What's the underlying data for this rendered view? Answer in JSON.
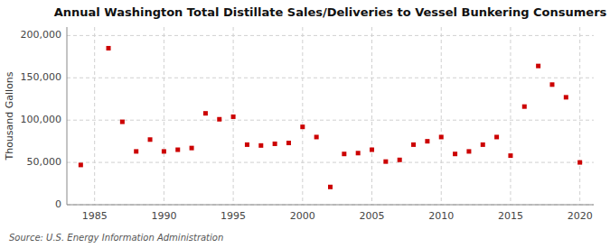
{
  "chart_data": {
    "type": "scatter",
    "title": "Annual Washington Total Distillate Sales/Deliveries to Vessel Bunkering Consumers",
    "ylabel": "Thousand Gallons",
    "source": "Source: U.S. Energy Information Administration",
    "x": [
      1984,
      1986,
      1987,
      1988,
      1989,
      1990,
      1991,
      1992,
      1993,
      1994,
      1995,
      1996,
      1997,
      1998,
      1999,
      2000,
      2001,
      2002,
      2003,
      2004,
      2005,
      2006,
      2007,
      2008,
      2009,
      2010,
      2011,
      2012,
      2013,
      2014,
      2015,
      2016,
      2017,
      2018,
      2019,
      2020
    ],
    "values": [
      47000,
      185000,
      98000,
      63000,
      77000,
      63000,
      65000,
      67000,
      108000,
      101000,
      104000,
      71000,
      70000,
      72000,
      73000,
      92000,
      80000,
      21000,
      60000,
      61000,
      65000,
      51000,
      53000,
      71000,
      75000,
      80000,
      60000,
      63000,
      71000,
      80000,
      58000,
      116000,
      164000,
      142000,
      127000,
      50000
    ],
    "color": "#cc0000",
    "marker": "square",
    "xlim": [
      1983,
      2021
    ],
    "ylim": [
      0,
      210000
    ],
    "xticks": [
      1985,
      1990,
      1995,
      2000,
      2005,
      2010,
      2015,
      2020
    ],
    "yticks": [
      0,
      {
        "value": 50000,
        "label": "50,000"
      },
      {
        "value": 100000,
        "label": "100,000"
      },
      {
        "value": 150000,
        "label": "150,000"
      },
      {
        "value": 200000,
        "label": "200,000"
      }
    ],
    "grid": true
  }
}
